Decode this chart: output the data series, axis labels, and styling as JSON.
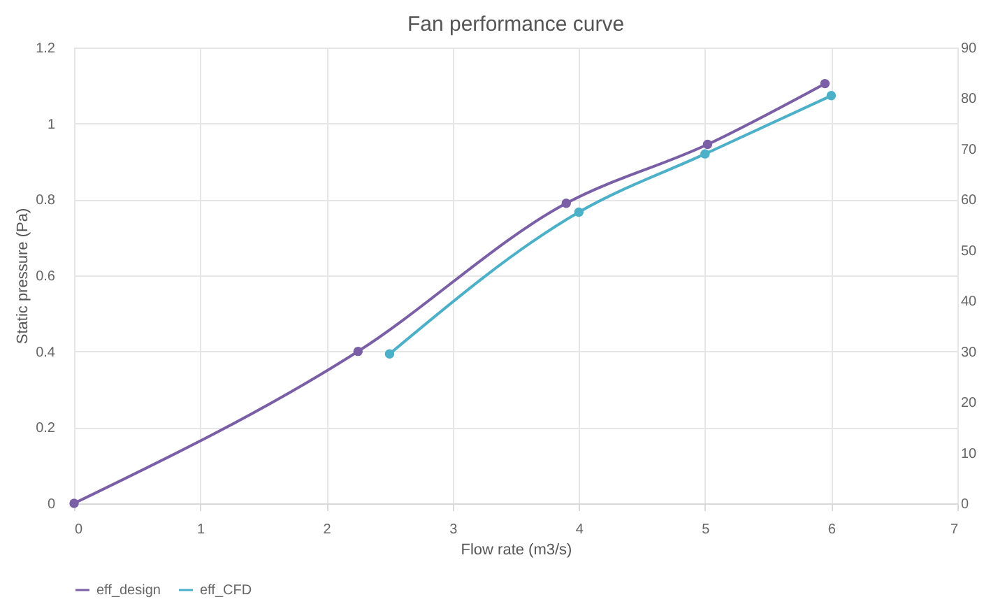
{
  "chart_data": {
    "type": "line",
    "title": "Fan performance curve",
    "xlabel": "Flow rate (m3/s)",
    "ylabel": "Static pressure (Pa)",
    "xlim": [
      0,
      7
    ],
    "xticks": [
      0,
      1,
      2,
      3,
      4,
      5,
      6,
      7
    ],
    "ylim": [
      0,
      1.2
    ],
    "yticks": [
      0,
      0.2,
      0.4,
      0.6,
      0.8,
      1,
      1.2
    ],
    "y2lim": [
      0,
      90
    ],
    "y2ticks": [
      0,
      10,
      20,
      30,
      40,
      50,
      60,
      70,
      80,
      90
    ],
    "grid": true,
    "legend": "bottom",
    "marker": "circle",
    "line_style": "solid",
    "series": [
      {
        "name": "eff_design",
        "color": "#7a5fa6",
        "x": [
          0,
          2.25,
          3.9,
          5.02,
          5.95
        ],
        "values": [
          0,
          0.4,
          0.79,
          0.945,
          1.105
        ]
      },
      {
        "name": "eff_CFD",
        "color": "#4bb0c8",
        "axis": "y2",
        "x": [
          2.5,
          4,
          5,
          6
        ],
        "values": [
          29.5,
          57.5,
          69,
          80.5
        ]
      }
    ]
  }
}
